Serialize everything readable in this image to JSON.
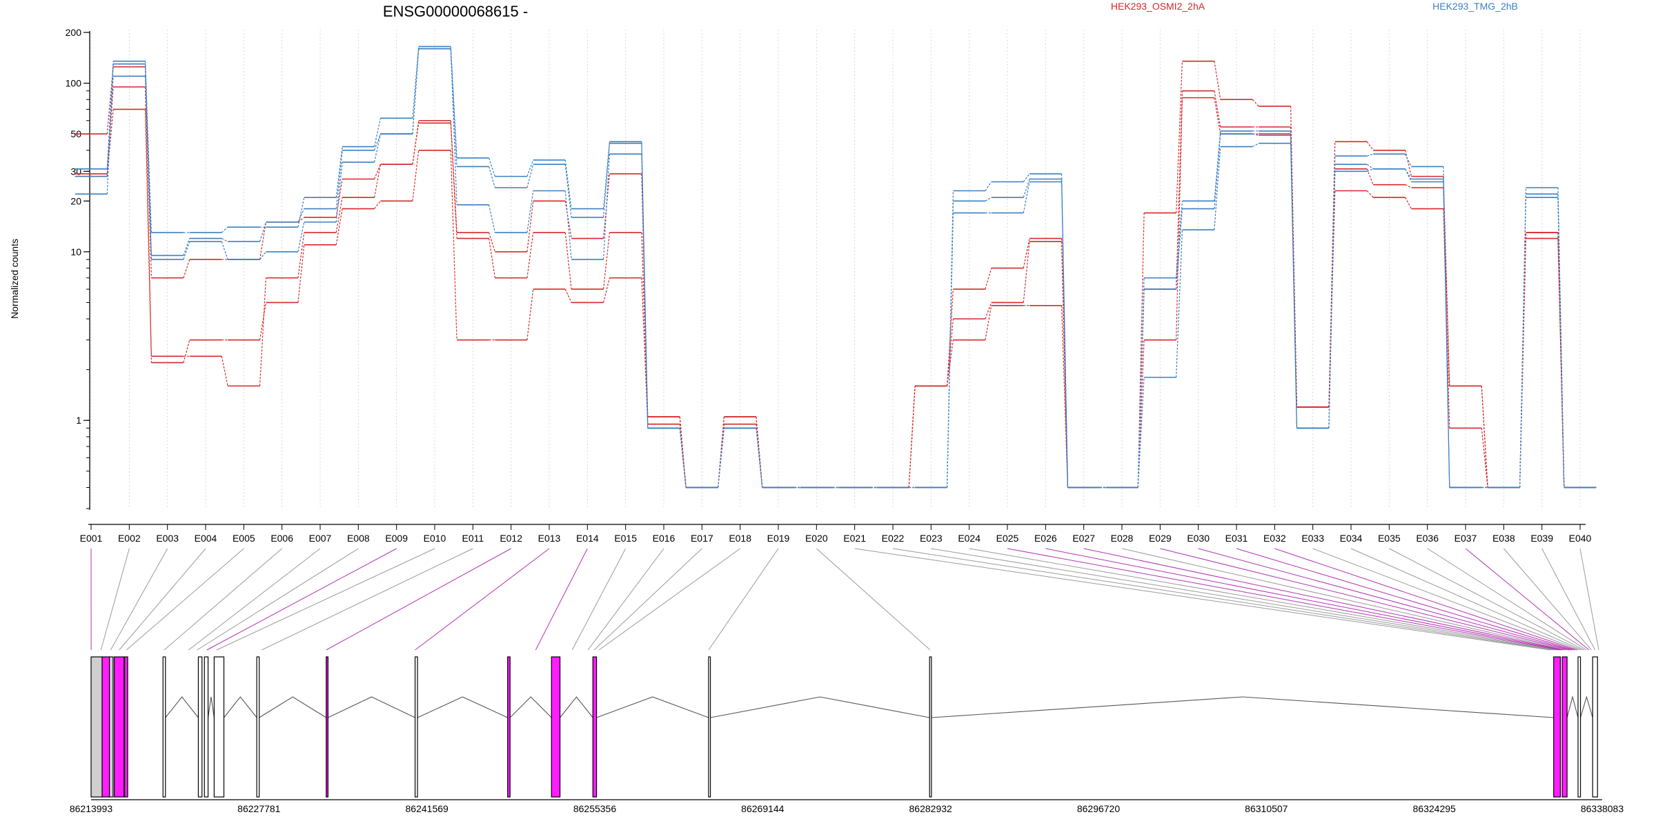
{
  "chart_data": {
    "type": "line",
    "title": "ENSG00000068615 -",
    "ylabel": "Normalized counts",
    "xlabel": "",
    "y_scale": "log",
    "ylim": [
      0.3,
      200
    ],
    "y_ticks": [
      1,
      10,
      20,
      30,
      50,
      100,
      200
    ],
    "legend_placement": "top",
    "grid": "vertical dotted lines at exon bins",
    "categories": [
      "E001",
      "E002",
      "E003",
      "E004",
      "E005",
      "E006",
      "E007",
      "E008",
      "E009",
      "E010",
      "E011",
      "E012",
      "E013",
      "E014",
      "E015",
      "E016",
      "E017",
      "E018",
      "E019",
      "E020",
      "E021",
      "E022",
      "E023",
      "E024",
      "E025",
      "E026",
      "E027",
      "E028",
      "E029",
      "E030",
      "E031",
      "E032",
      "E033",
      "E034",
      "E035",
      "E036",
      "E037",
      "E038",
      "E039",
      "E040"
    ],
    "legend": [
      {
        "label": "HEK293_OSMI2_2hA",
        "color": "#d62728"
      },
      {
        "label": "HEK293_TMG_2hB",
        "color": "#3a7fc1"
      }
    ],
    "series": [
      {
        "group": "HEK293_OSMI2_2hA",
        "color": "#d62728",
        "values": [
          50,
          125,
          7,
          9,
          9,
          15,
          16,
          27,
          33,
          60,
          13,
          10,
          20,
          12,
          29,
          1.05,
          0.4,
          1.05,
          0.4,
          0.4,
          0.4,
          0.4,
          1.6,
          6,
          8,
          12,
          0.4,
          0.4,
          17,
          135,
          80,
          73,
          1.2,
          45,
          40,
          28,
          1.6,
          0.4,
          13,
          0.4
        ]
      },
      {
        "group": "HEK293_OSMI2_2hA",
        "color": "#d62728",
        "values": [
          29,
          95,
          2.4,
          2.4,
          1.6,
          7,
          13,
          21,
          33,
          58,
          12,
          7,
          13,
          6,
          13,
          1.05,
          0.4,
          1.05,
          0.4,
          0.4,
          0.4,
          0.4,
          1.6,
          4,
          5,
          11.5,
          0.4,
          0.4,
          6,
          90,
          55,
          55,
          1.2,
          31,
          25,
          24,
          1.6,
          0.4,
          13,
          0.4
        ]
      },
      {
        "group": "HEK293_OSMI2_2hA",
        "color": "#d62728",
        "values": [
          28,
          70,
          2.2,
          3,
          3,
          5,
          11,
          18,
          20,
          40,
          3,
          3,
          6,
          5,
          7,
          0.95,
          0.4,
          0.95,
          0.4,
          0.4,
          0.4,
          0.4,
          1.6,
          3,
          4.8,
          4.8,
          0.4,
          0.4,
          3,
          82,
          50,
          50,
          1.2,
          23,
          21,
          18,
          0.9,
          0.4,
          12,
          0.4
        ]
      },
      {
        "group": "HEK293_TMG_2hB",
        "color": "#3a7fc1",
        "values": [
          31,
          135,
          13,
          13,
          14,
          14,
          21,
          42,
          62,
          165,
          36,
          28,
          35,
          18,
          45,
          0.9,
          0.4,
          0.9,
          0.4,
          0.4,
          0.4,
          0.4,
          0.4,
          23,
          26,
          29,
          0.4,
          0.4,
          7,
          20,
          52,
          52,
          0.9,
          37,
          38,
          32,
          0.4,
          0.4,
          24,
          0.4
        ]
      },
      {
        "group": "HEK293_TMG_2hB",
        "color": "#3a7fc1",
        "values": [
          28,
          110,
          9.5,
          12,
          11.5,
          15,
          18,
          40,
          50,
          160,
          32,
          24,
          33,
          16,
          44,
          0.9,
          0.4,
          0.9,
          0.4,
          0.4,
          0.4,
          0.4,
          0.4,
          20,
          21,
          27,
          0.4,
          0.4,
          6,
          18,
          50,
          49,
          0.9,
          33,
          31,
          27,
          0.4,
          0.4,
          22,
          0.4
        ]
      },
      {
        "group": "HEK293_TMG_2hB",
        "color": "#3a7fc1",
        "values": [
          22,
          130,
          9,
          11.5,
          9,
          10,
          15,
          34,
          50,
          160,
          19,
          13,
          23,
          9,
          38,
          0.9,
          0.4,
          0.9,
          0.4,
          0.4,
          0.4,
          0.4,
          0.4,
          17,
          17,
          26,
          0.4,
          0.4,
          1.8,
          13.5,
          42,
          44,
          0.9,
          30,
          31,
          26,
          0.4,
          0.4,
          21,
          0.4
        ]
      }
    ],
    "genomic_axis": {
      "tick_labels": [
        "86213993",
        "86227781",
        "86241569",
        "86255356",
        "86269144",
        "86282932",
        "86296720",
        "86310507",
        "86324295",
        "86338083"
      ],
      "range": [
        86213993,
        86338083
      ]
    },
    "exon_map": {
      "exon_genomic_positions": [
        86214000,
        86214800,
        86215600,
        86216300,
        86216900,
        86220000,
        86222000,
        86222700,
        86223500,
        86224300,
        86228000,
        86233300,
        86240600,
        86250500,
        86253500,
        86254800,
        86255300,
        86255700,
        86264700,
        86282900,
        86333800,
        86334000,
        86334200,
        86334400,
        86334600,
        86334800,
        86335000,
        86335200,
        86335400,
        86335600,
        86335800,
        86336000,
        86336200,
        86336400,
        86336600,
        86336800,
        86337000,
        86337200,
        86337500,
        86337800
      ],
      "blocks": [
        {
          "start": 86213993,
          "end": 86214900,
          "fill": "#cfcfcf"
        },
        {
          "start": 86214900,
          "end": 86215500,
          "fill": "#ff1dff"
        },
        {
          "start": 86215500,
          "end": 86215800,
          "fill": "#cfcfcf"
        },
        {
          "start": 86215900,
          "end": 86216700,
          "fill": "#ff1dff"
        },
        {
          "start": 86216750,
          "end": 86217000,
          "fill": "#ff1dff"
        },
        {
          "start": 86219900,
          "end": 86220100,
          "fill": "#ffffff"
        },
        {
          "start": 86222800,
          "end": 86223100,
          "fill": "#ffffff"
        },
        {
          "start": 86223300,
          "end": 86223600,
          "fill": "#ffffff"
        },
        {
          "start": 86224100,
          "end": 86224900,
          "fill": "#ffffff"
        },
        {
          "start": 86227600,
          "end": 86227800,
          "fill": "#ffffff"
        },
        {
          "start": 86233300,
          "end": 86233450,
          "fill": "#ff1dff"
        },
        {
          "start": 86240600,
          "end": 86240800,
          "fill": "#ffffff"
        },
        {
          "start": 86248200,
          "end": 86248400,
          "fill": "#ff1dff"
        },
        {
          "start": 86251800,
          "end": 86252500,
          "fill": "#ff1dff"
        },
        {
          "start": 86255200,
          "end": 86255500,
          "fill": "#ff1dff"
        },
        {
          "start": 86264700,
          "end": 86264850,
          "fill": "#ffffff"
        },
        {
          "start": 86282850,
          "end": 86283000,
          "fill": "#ffffff"
        },
        {
          "start": 86334100,
          "end": 86334650,
          "fill": "#ff1dff"
        },
        {
          "start": 86334800,
          "end": 86335200,
          "fill": "#ff1dff"
        },
        {
          "start": 86336100,
          "end": 86336300,
          "fill": "#ffffff"
        },
        {
          "start": 86337300,
          "end": 86337700,
          "fill": "#ffffff"
        }
      ],
      "introns": [
        [
          86220100,
          86222800
        ],
        [
          86223600,
          86224100
        ],
        [
          86224900,
          86227600
        ],
        [
          86227800,
          86233300
        ],
        [
          86233450,
          86240600
        ],
        [
          86240800,
          86248200
        ],
        [
          86248400,
          86251800
        ],
        [
          86252500,
          86255200
        ],
        [
          86255500,
          86264700
        ],
        [
          86264850,
          86282850
        ],
        [
          86283000,
          86334100
        ],
        [
          86335200,
          86336100
        ],
        [
          86336300,
          86337300
        ]
      ],
      "highlighted_exons": [
        "E001",
        "E009",
        "E012",
        "E013",
        "E014",
        "E025",
        "E026",
        "E027",
        "E029",
        "E030",
        "E031",
        "E032",
        "E037"
      ]
    }
  }
}
